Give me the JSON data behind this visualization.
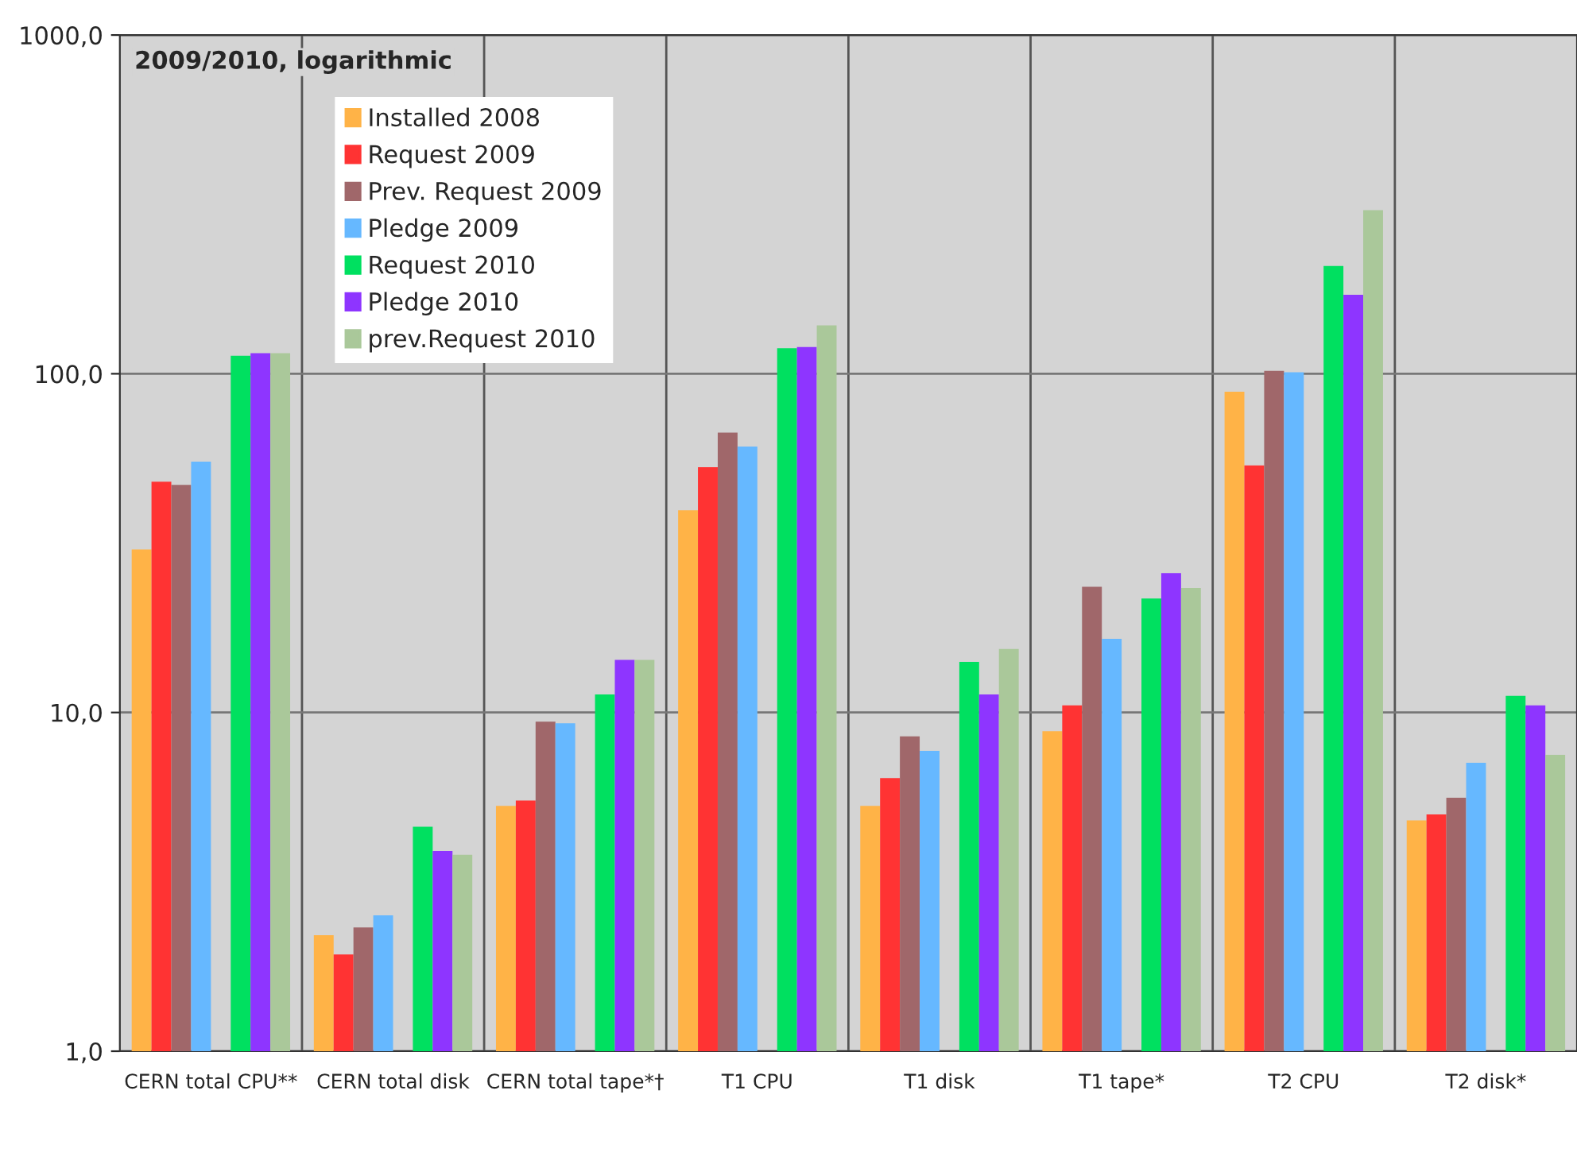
{
  "chart_data": {
    "type": "bar",
    "title": "2009/2010, logarithmic",
    "categories": [
      "CERN total CPU**",
      "CERN total disk",
      "CERN total tape*†",
      "T1 CPU",
      "T1 disk",
      "T1 tape*",
      "T2 CPU",
      "T2 disk*"
    ],
    "series": [
      {
        "name": "Installed 2008",
        "color": "#ffb347",
        "values": [
          30.3,
          2.2,
          5.3,
          39.5,
          5.3,
          8.8,
          88.5,
          4.8
        ]
      },
      {
        "name": "Request 2009",
        "color": "#ff3333",
        "values": [
          48,
          1.93,
          5.5,
          53,
          6.4,
          10.5,
          53.6,
          5.0
        ]
      },
      {
        "name": "Prev. Request 2009",
        "color": "#a0676a",
        "values": [
          47,
          2.32,
          9.4,
          67,
          8.5,
          23.5,
          102,
          5.6
        ]
      },
      {
        "name": "Pledge 2009",
        "color": "#66b8ff",
        "values": [
          55,
          2.52,
          9.3,
          61,
          7.7,
          16.5,
          101,
          7.1
        ]
      },
      {
        "name": "Request 2010",
        "color": "#00e060",
        "values": [
          113,
          4.6,
          11.3,
          119,
          14.1,
          21.7,
          208,
          11.2
        ]
      },
      {
        "name": "Pledge 2010",
        "color": "#8e35ff",
        "values": [
          115,
          3.9,
          14.3,
          120,
          11.3,
          25.8,
          171,
          10.5
        ]
      },
      {
        "name": "prev.Request 2010",
        "color": "#aac89a",
        "values": [
          115,
          3.8,
          14.3,
          139,
          15.4,
          23.3,
          304,
          7.5
        ]
      }
    ],
    "log": "y",
    "ylim": [
      1,
      1000
    ],
    "yticks": [
      {
        "value": 1,
        "label": "1,0"
      },
      {
        "value": 10,
        "label": "10,0"
      },
      {
        "value": 100,
        "label": "100,0"
      },
      {
        "value": 1000,
        "label": "1000,0"
      }
    ],
    "grid": true,
    "legend": "top left"
  }
}
